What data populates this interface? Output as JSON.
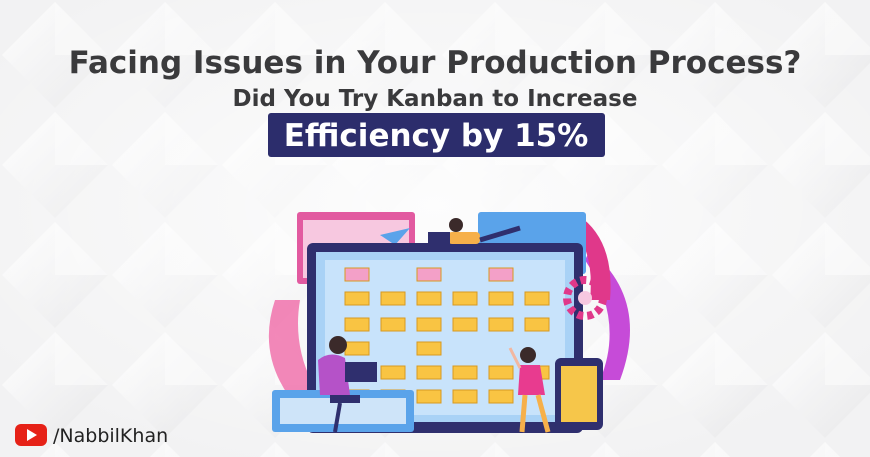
{
  "headline": "Facing Issues in Your Production Process?",
  "subheadline": "Did You Try Kanban to Increase",
  "highlight": "Efficiency by 15%",
  "channel": "/NabbilKhan"
}
